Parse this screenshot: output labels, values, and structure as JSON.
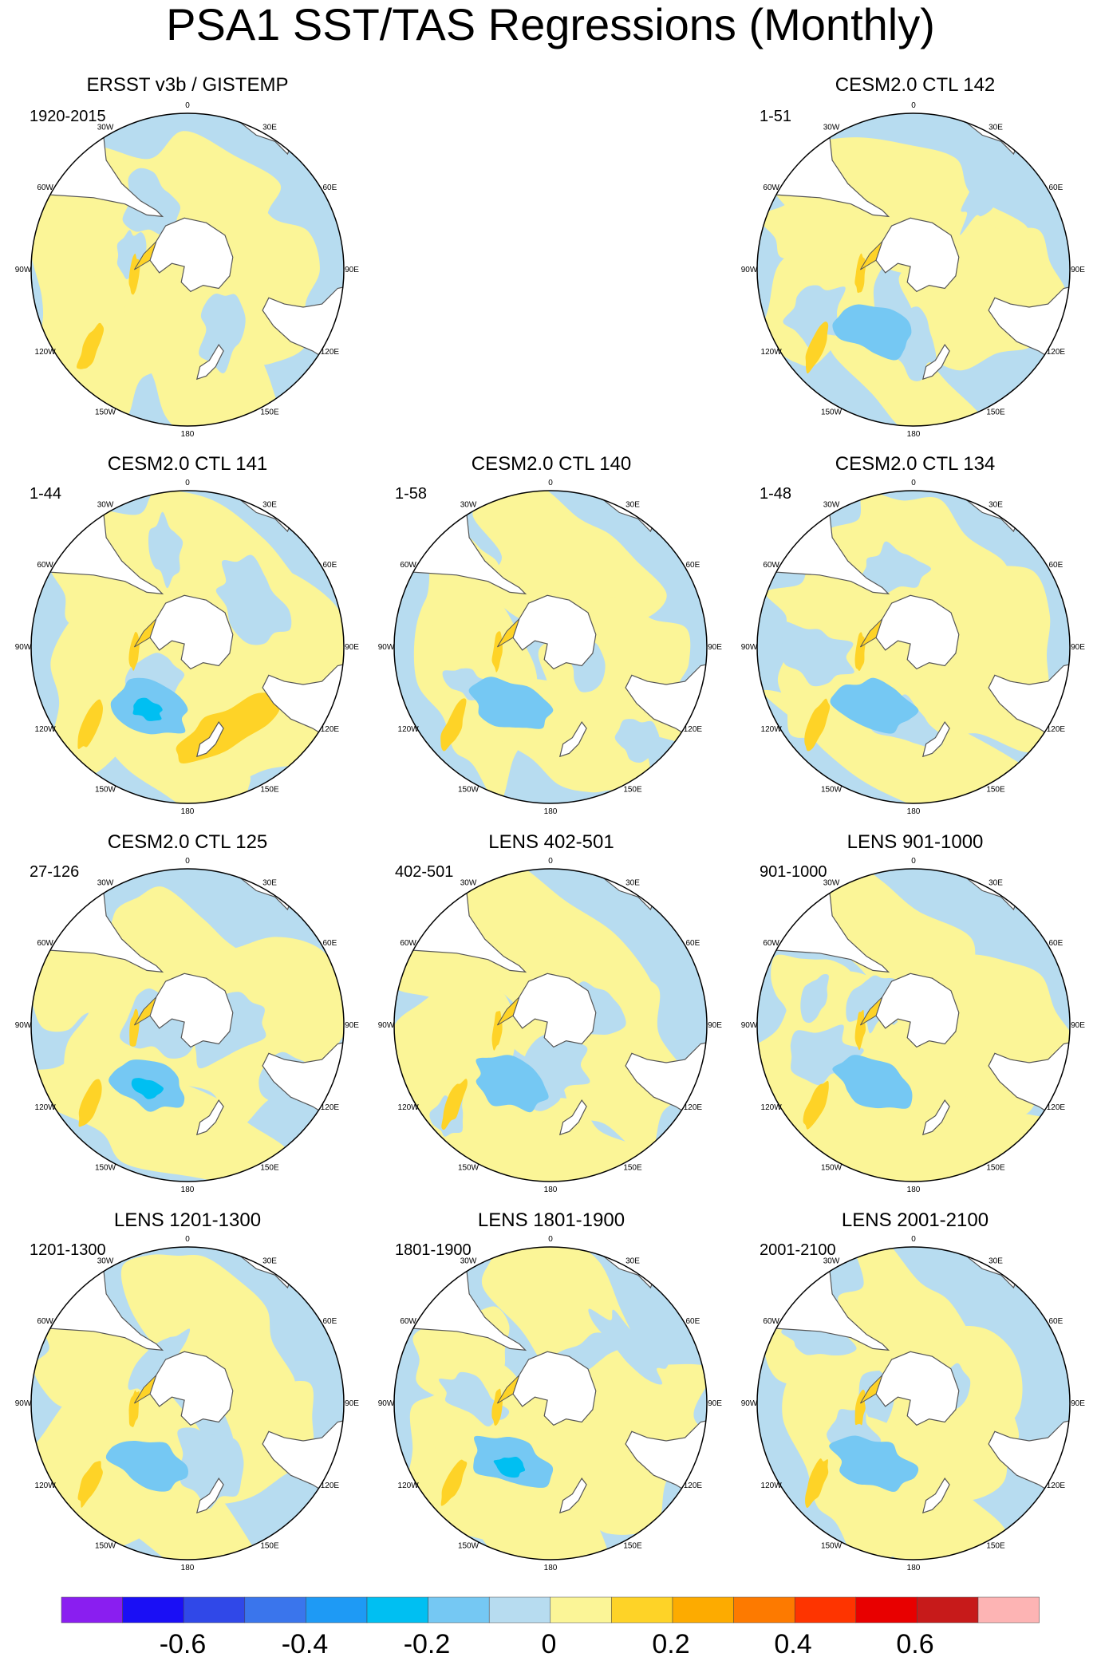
{
  "title": "PSA1 SST/TAS Regressions (Monthly)",
  "lon_labels": [
    "0",
    "30E",
    "60E",
    "90E",
    "120E",
    "150E",
    "180",
    "150W",
    "120W",
    "90W",
    "60W",
    "30W"
  ],
  "colors": {
    "ocean_blue": "#b7dcf0",
    "ocean_yellow": "#fbf597",
    "land_outline": "#555555",
    "rim": "#000000"
  },
  "chart_data": {
    "type": "heatmap",
    "projection": "south polar stereographic",
    "title": "PSA1 SST/TAS Regressions (Monthly)",
    "colorbar": {
      "levels": [
        -0.7,
        -0.6,
        -0.5,
        -0.4,
        -0.3,
        -0.2,
        -0.1,
        0,
        0.1,
        0.2,
        0.3,
        0.4,
        0.5,
        0.6,
        0.7
      ],
      "colors": [
        "#8a1ef0",
        "#1a0ff5",
        "#3048e8",
        "#3a75ec",
        "#1e9af5",
        "#00bff2",
        "#75c8f3",
        "#b7dcf0",
        "#fbf597",
        "#fed327",
        "#fdab00",
        "#fd7a00",
        "#fe3400",
        "#e80000",
        "#c71a1a",
        "#fdb4b4"
      ],
      "tick_values": [
        -0.6,
        -0.4,
        -0.2,
        0,
        0.2,
        0.4,
        0.6
      ],
      "tick_labels": [
        "-0.6",
        "-0.4",
        "-0.2",
        "0",
        "0.2",
        "0.4",
        "0.6"
      ]
    },
    "panels": [
      {
        "title": "ERSST v3b / GISTEMP",
        "period": "1920-2015",
        "variant": 0
      },
      {
        "title": "CESM2.0 CTL 142",
        "period": "1-51",
        "variant": 1
      },
      {
        "title": "CESM2.0 CTL 141",
        "period": "1-44",
        "variant": 2
      },
      {
        "title": "CESM2.0 CTL 140",
        "period": "1-58",
        "variant": 3
      },
      {
        "title": "CESM2.0 CTL 134",
        "period": "1-48",
        "variant": 4
      },
      {
        "title": "CESM2.0 CTL 125",
        "period": "27-126",
        "variant": 5
      },
      {
        "title": "LENS 402-501",
        "period": "402-501",
        "variant": 6
      },
      {
        "title": "LENS 901-1000",
        "period": "901-1000",
        "variant": 7
      },
      {
        "title": "LENS 1201-1300",
        "period": "1201-1300",
        "variant": 8
      },
      {
        "title": "LENS 1801-1900",
        "period": "1801-1900",
        "variant": 9
      },
      {
        "title": "LENS 2001-2100",
        "period": "2001-2100",
        "variant": 10
      }
    ]
  }
}
